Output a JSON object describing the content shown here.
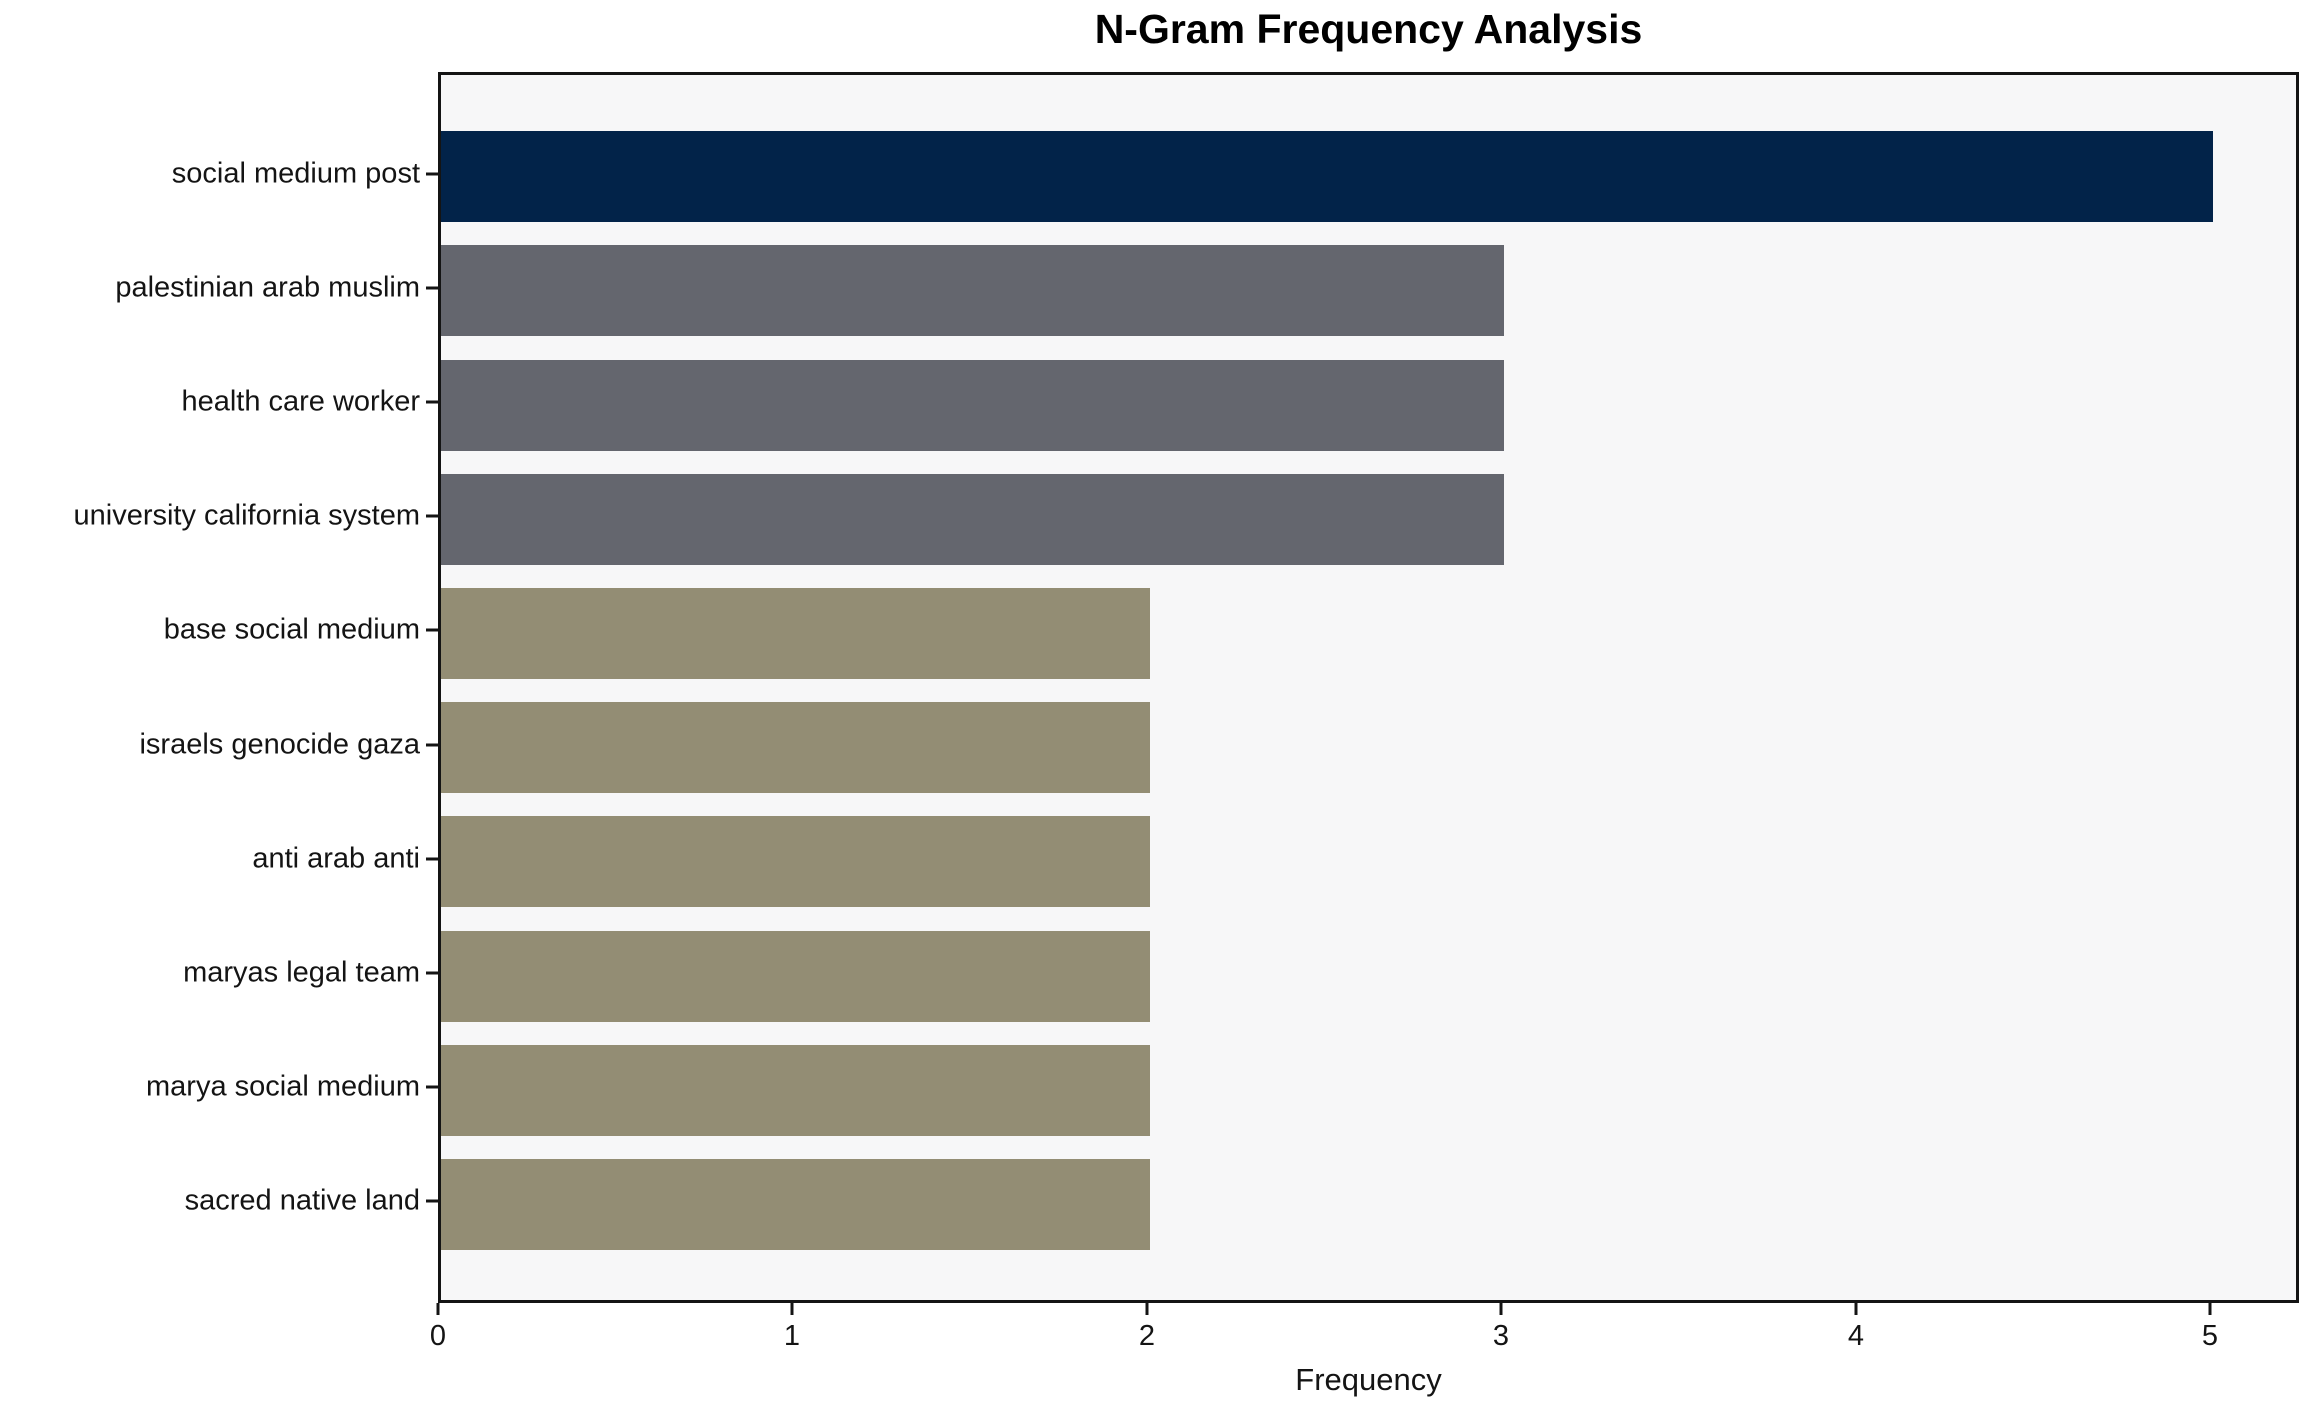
{
  "chart_data": {
    "type": "bar",
    "orientation": "horizontal",
    "title": "N-Gram Frequency Analysis",
    "xlabel": "Frequency",
    "ylabel": "",
    "categories": [
      "social medium post",
      "palestinian arab muslim",
      "health care worker",
      "university california system",
      "base social medium",
      "israels genocide gaza",
      "anti arab anti",
      "maryas legal team",
      "marya social medium",
      "sacred native land"
    ],
    "values": [
      5,
      3,
      3,
      3,
      2,
      2,
      2,
      2,
      2,
      2
    ],
    "bar_colors": [
      "#022349",
      "#64666e",
      "#64666e",
      "#64666e",
      "#938d74",
      "#938d74",
      "#938d74",
      "#938d74",
      "#938d74",
      "#938d74"
    ],
    "x_ticks": [
      0,
      1,
      2,
      3,
      4,
      5
    ],
    "xlim": [
      0,
      5.25
    ],
    "grid": false,
    "legend_position": "none",
    "colors": {
      "accent_navy": "#022349",
      "neutral_gray": "#64666e",
      "khaki_olive": "#938d74",
      "plot_background": "#f7f7f8",
      "figure_background": "#ffffff",
      "spine": "#141414"
    }
  }
}
